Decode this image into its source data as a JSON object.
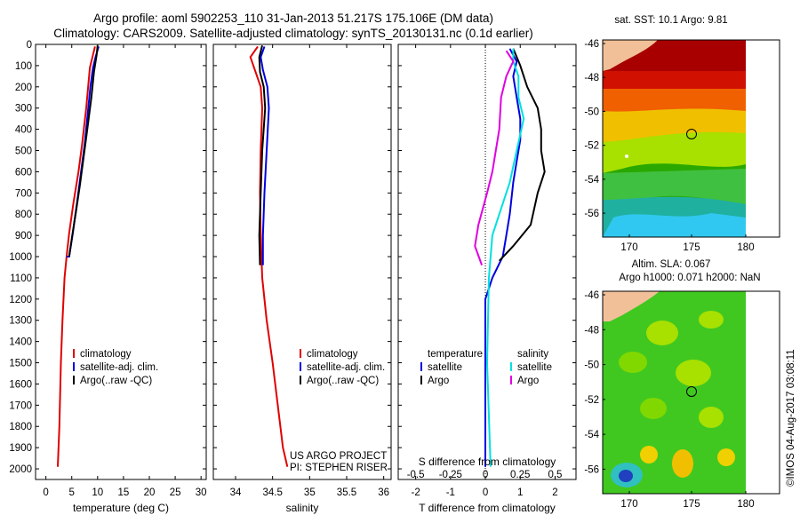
{
  "title_line1": "Argo profile: aoml 5902253_110 31-Jan-2013 51.217S 175.106E (DM data)",
  "title_line2": "Climatology: CARS2009. Satellite-adjusted climatology: synTS_20130131.nc (0.1d earlier)",
  "colors": {
    "climatology": "#e00000",
    "satellite": "#0000e0",
    "argo": "#000000",
    "sat_salinity": "#00e0e0",
    "argo_salinity": "#e000e0"
  },
  "legend": {
    "climatology": "climatology",
    "satellite": "satellite-adj. clim.",
    "argo": "Argo(..raw -QC)"
  },
  "diff_legend": {
    "temperature": "temperature",
    "salinity": "salinity",
    "satellite": "satellite",
    "argo": "Argo"
  },
  "credit": {
    "project": "US ARGO PROJECT",
    "pi": "PI: STEPHEN RISER"
  },
  "watermark": "©IMOS 04-Aug-2017 03:08:11",
  "sst_map": {
    "title": "sat. SST: 10.1 Argo: 9.81",
    "yticks": [
      "-46",
      "-48",
      "-50",
      "-52",
      "-54",
      "-56"
    ],
    "xticks": [
      "170",
      "175",
      "180"
    ]
  },
  "sla_map": {
    "title1": "Altim. SLA: 0.067",
    "title2": "Argo h1000: 0.071 h2000: NaN",
    "yticks": [
      "-46",
      "-48",
      "-50",
      "-52",
      "-54",
      "-56"
    ],
    "xticks": [
      "170",
      "175",
      "180"
    ]
  },
  "chart_data": [
    {
      "type": "line",
      "name": "temperature profile",
      "xlabel": "temperature (deg C)",
      "ylabel": "",
      "xlim": [
        -2,
        31
      ],
      "ylim": [
        2050,
        0
      ],
      "xticks": [
        0,
        5,
        10,
        15,
        20,
        25,
        30
      ],
      "yticks": [
        0,
        100,
        200,
        300,
        400,
        500,
        600,
        700,
        800,
        900,
        1000,
        1100,
        1200,
        1300,
        1400,
        1500,
        1600,
        1700,
        1800,
        1900,
        2000
      ],
      "series": [
        {
          "name": "climatology",
          "key": "climatology",
          "points": [
            [
              9.5,
              10
            ],
            [
              9.0,
              60
            ],
            [
              8.5,
              110
            ],
            [
              7.8,
              300
            ],
            [
              7.0,
              470
            ],
            [
              6.3,
              600
            ],
            [
              5.3,
              750
            ],
            [
              4.5,
              890
            ],
            [
              4.0,
              1000
            ],
            [
              3.6,
              1100
            ],
            [
              3.2,
              1300
            ],
            [
              2.9,
              1500
            ],
            [
              2.6,
              1800
            ],
            [
              2.3,
              1990
            ]
          ]
        },
        {
          "name": "satellite-adj. clim.",
          "key": "satellite",
          "points": [
            [
              10.2,
              10
            ],
            [
              9.6,
              60
            ],
            [
              9.1,
              110
            ],
            [
              8.6,
              200
            ],
            [
              8.2,
              300
            ],
            [
              7.5,
              470
            ],
            [
              6.8,
              600
            ],
            [
              6.0,
              750
            ],
            [
              5.2,
              890
            ],
            [
              4.5,
              1000
            ],
            [
              4.0,
              1000
            ]
          ]
        },
        {
          "name": "Argo(..raw -QC)",
          "key": "argo",
          "points": [
            [
              10.0,
              5
            ],
            [
              9.8,
              50
            ],
            [
              9.3,
              130
            ],
            [
              8.8,
              250
            ],
            [
              8.0,
              400
            ],
            [
              7.3,
              530
            ],
            [
              6.6,
              660
            ],
            [
              5.8,
              790
            ],
            [
              5.1,
              900
            ],
            [
              4.5,
              1000
            ]
          ]
        }
      ]
    },
    {
      "type": "line",
      "name": "salinity profile",
      "xlabel": "salinity",
      "ylabel": "",
      "xlim": [
        33.7,
        36.1
      ],
      "ylim": [
        2050,
        0
      ],
      "xticks": [
        34,
        34.5,
        35,
        35.5,
        36
      ],
      "series": [
        {
          "name": "climatology",
          "key": "climatology",
          "points": [
            [
              34.3,
              10
            ],
            [
              34.2,
              60
            ],
            [
              34.26,
              120
            ],
            [
              34.34,
              200
            ],
            [
              34.36,
              300
            ],
            [
              34.34,
              500
            ],
            [
              34.33,
              700
            ],
            [
              34.34,
              900
            ],
            [
              34.36,
              1100
            ],
            [
              34.42,
              1300
            ],
            [
              34.5,
              1500
            ],
            [
              34.57,
              1700
            ],
            [
              34.64,
              1900
            ],
            [
              34.7,
              1990
            ]
          ]
        },
        {
          "name": "satellite-adj. clim.",
          "key": "satellite",
          "points": [
            [
              34.39,
              10
            ],
            [
              34.34,
              60
            ],
            [
              34.37,
              120
            ],
            [
              34.43,
              200
            ],
            [
              34.45,
              300
            ],
            [
              34.42,
              500
            ],
            [
              34.39,
              700
            ],
            [
              34.37,
              900
            ],
            [
              34.37,
              1040
            ]
          ]
        },
        {
          "name": "Argo(..raw -QC)",
          "key": "argo",
          "points": [
            [
              34.36,
              5
            ],
            [
              34.32,
              60
            ],
            [
              34.33,
              130
            ],
            [
              34.38,
              200
            ],
            [
              34.4,
              300
            ],
            [
              34.36,
              500
            ],
            [
              34.34,
              700
            ],
            [
              34.32,
              900
            ],
            [
              34.33,
              1040
            ]
          ]
        }
      ]
    },
    {
      "type": "line",
      "name": "difference from climatology",
      "xlabel": "T difference from climatology",
      "xlabel_top": "S difference from climatology",
      "xlim": [
        -2.5,
        2.6
      ],
      "ylim": [
        2050,
        0
      ],
      "xticks": [
        -2,
        -1,
        0,
        1,
        2
      ],
      "xticks_top": [
        "-0.5",
        "-0.25",
        "0",
        "0.25",
        "0.5"
      ],
      "series": [
        {
          "name": "T satellite",
          "key": "satellite",
          "points": [
            [
              0.7,
              20
            ],
            [
              0.9,
              80
            ],
            [
              0.8,
              150
            ],
            [
              0.9,
              250
            ],
            [
              1.0,
              350
            ],
            [
              1.0,
              450
            ],
            [
              0.9,
              550
            ],
            [
              0.8,
              650
            ],
            [
              0.7,
              800
            ],
            [
              0.6,
              900
            ],
            [
              0.5,
              1000
            ],
            [
              0.2,
              1100
            ],
            [
              0.0,
              1200
            ],
            [
              0.0,
              1500
            ],
            [
              0.0,
              1900
            ],
            [
              0.0,
              1990
            ]
          ]
        },
        {
          "name": "T Argo",
          "key": "argo",
          "points": [
            [
              0.8,
              20
            ],
            [
              1.0,
              100
            ],
            [
              1.2,
              200
            ],
            [
              1.5,
              300
            ],
            [
              1.6,
              400
            ],
            [
              1.6,
              500
            ],
            [
              1.7,
              600
            ],
            [
              1.5,
              700
            ],
            [
              1.3,
              850
            ],
            [
              0.8,
              950
            ],
            [
              0.4,
              1020
            ]
          ]
        },
        {
          "name": "S satellite",
          "key": "sat_salinity",
          "points": [
            [
              0.8,
              20
            ],
            [
              0.8,
              80
            ],
            [
              0.95,
              150
            ],
            [
              0.95,
              250
            ],
            [
              1.1,
              350
            ],
            [
              0.9,
              500
            ],
            [
              0.7,
              650
            ],
            [
              0.4,
              800
            ],
            [
              0.2,
              900
            ],
            [
              0.1,
              1100
            ],
            [
              0.05,
              1500
            ],
            [
              0.15,
              1990
            ]
          ]
        },
        {
          "name": "S Argo",
          "key": "argo_salinity",
          "points": [
            [
              0.6,
              30
            ],
            [
              0.8,
              80
            ],
            [
              0.6,
              150
            ],
            [
              0.45,
              250
            ],
            [
              0.4,
              400
            ],
            [
              0.3,
              500
            ],
            [
              0.2,
              600
            ],
            [
              0.05,
              700
            ],
            [
              -0.2,
              850
            ],
            [
              -0.3,
              950
            ],
            [
              -0.1,
              1040
            ]
          ]
        }
      ]
    }
  ]
}
